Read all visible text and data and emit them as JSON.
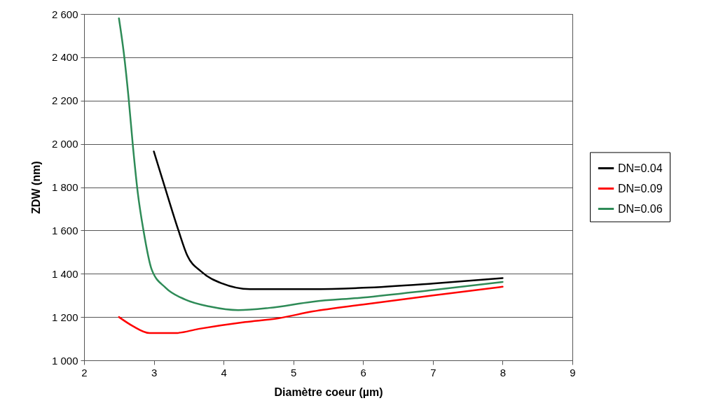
{
  "chart_data": {
    "type": "line",
    "xlabel": "Diamètre coeur (µm)",
    "ylabel": "ZDW (nm)",
    "xlim": [
      2,
      9
    ],
    "xticks": [
      2,
      3,
      4,
      5,
      6,
      7,
      8,
      9
    ],
    "ylim": [
      1000,
      2600
    ],
    "yticks": [
      {
        "value": 1000,
        "label": "1 000"
      },
      {
        "value": 1200,
        "label": "1 200"
      },
      {
        "value": 1400,
        "label": "1 400"
      },
      {
        "value": 1600,
        "label": "1 600"
      },
      {
        "value": 1800,
        "label": "1 800"
      },
      {
        "value": 2000,
        "label": "2 000"
      },
      {
        "value": 2200,
        "label": "2 200"
      },
      {
        "value": 2400,
        "label": "2 400"
      },
      {
        "value": 2600,
        "label": "2 600"
      }
    ],
    "grid": "y",
    "legend": "right",
    "marker": "none",
    "line_style": "solid",
    "series": [
      {
        "name": "DN=0.04",
        "color": "#000000",
        "x": [
          3.0,
          3.14,
          3.35,
          3.48,
          3.68,
          3.98,
          4.38,
          5.25,
          6,
          7,
          8
        ],
        "values": [
          1965,
          1819,
          1603,
          1484,
          1410,
          1355,
          1329,
          1329,
          1335,
          1355,
          1380
        ]
      },
      {
        "name": "DN=0.09",
        "color": "#ff0000",
        "x": [
          2.5,
          2.7,
          2.94,
          3.31,
          3.64,
          4.31,
          4.78,
          5.28,
          6,
          7,
          8
        ],
        "values": [
          1200,
          1158,
          1126,
          1126,
          1145,
          1177,
          1194,
          1226,
          1258,
          1300,
          1340
        ]
      },
      {
        "name": "DN=0.06",
        "color": "#2e8b57",
        "x": [
          2.5,
          2.57,
          2.64,
          2.7,
          2.77,
          2.85,
          2.97,
          3.17,
          3.45,
          3.81,
          4.21,
          4.65,
          5.28,
          6,
          7,
          8
        ],
        "values": [
          2580,
          2419,
          2206,
          1990,
          1774,
          1603,
          1419,
          1335,
          1281,
          1248,
          1232,
          1242,
          1271,
          1290,
          1325,
          1362
        ]
      }
    ]
  }
}
